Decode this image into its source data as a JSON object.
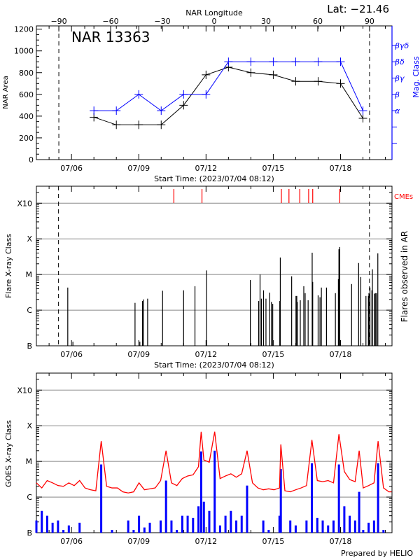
{
  "colors": {
    "area": "#000000",
    "mag": "#0000ff",
    "cme": "#ff0000",
    "goes_long": "#ff0000",
    "goes_short": "#0000ff",
    "grid": "#888888",
    "flare": "#000000"
  },
  "footer": "Prepared by HELIO",
  "chart_data": [
    {
      "type": "line",
      "title": "NAR 13363",
      "latitude_label": "Lat: −21.46",
      "xlabel": "Start Time: (2023/07/04 08:12)",
      "ylabel": "NAR Area",
      "y2label": "Mag. Class",
      "x2label": "NAR Longitude",
      "xlim": [
        "07/04 10:25",
        "07/20 07:05"
      ],
      "x_ticks": [
        "07/06",
        "07/09",
        "07/12",
        "07/15",
        "07/18"
      ],
      "x2lim": [
        -103,
        103
      ],
      "x2_ticks": [
        -90,
        -60,
        -30,
        0,
        30,
        60,
        90
      ],
      "ylim": [
        0,
        1230
      ],
      "y_ticks": [
        0,
        200,
        400,
        600,
        800,
        1000,
        1200
      ],
      "y2_ticks": [
        "",
        "",
        "α",
        "β",
        "βγ",
        "βδ",
        "βγδ"
      ],
      "limb_longitudes": [
        -90,
        90
      ],
      "x": [
        "07/07",
        "07/08",
        "07/09",
        "07/10",
        "07/11",
        "07/12",
        "07/13",
        "07/14",
        "07/15",
        "07/16",
        "07/17",
        "07/18",
        "07/19"
      ],
      "series": [
        {
          "name": "NAR Area",
          "values": [
            390,
            320,
            320,
            320,
            500,
            780,
            850,
            800,
            780,
            720,
            720,
            700,
            380
          ]
        },
        {
          "name": "Mag. Class",
          "values": [
            "α",
            "α",
            "β",
            "α",
            "β",
            "β",
            "βδ",
            "βδ",
            "βδ",
            "βδ",
            "βδ",
            "βδ",
            "α"
          ]
        }
      ],
      "grid": false
    },
    {
      "type": "bar",
      "xlabel": "Start Time: (2023/07/04 08:12)",
      "ylabel": "Flare X-ray Class",
      "y2label": "Flares observed in AR",
      "cme_label": "CMEs",
      "xlim": [
        "07/04 10:25",
        "07/20 07:05"
      ],
      "x_ticks": [
        "07/06",
        "07/09",
        "07/12",
        "07/15",
        "07/18"
      ],
      "y_scale": "log",
      "y_ticks": [
        "B",
        "C",
        "M",
        "X",
        "X10"
      ],
      "ylim": [
        "B1.0",
        "X30"
      ],
      "grid": true,
      "limb_times": [
        "07/05 10:07",
        "07/19 06:56"
      ],
      "flares": [
        [
          "07/05 20:00",
          "C4.3"
        ],
        [
          "07/06 01:30",
          "B1.3"
        ],
        [
          "07/08 20:00",
          "C1.6"
        ],
        [
          "07/09 01:10",
          "B1.3"
        ],
        [
          "07/09 04:00",
          "C1.8"
        ],
        [
          "07/09 05:00",
          "C2.0"
        ],
        [
          "07/09 09:30",
          "C2.1"
        ],
        [
          "07/10 01:30",
          "C3.5"
        ],
        [
          "07/11 00:00",
          "C3.6"
        ],
        [
          "07/11 12:10",
          "C4.7"
        ],
        [
          "07/12 00:35",
          "M1.3"
        ],
        [
          "07/13 23:25",
          "C7.0"
        ],
        [
          "07/14 08:23",
          "C1.8"
        ],
        [
          "07/14 09:50",
          "M1.0"
        ],
        [
          "07/14 11:17",
          "C2.1"
        ],
        [
          "07/14 13:35",
          "C3.6"
        ],
        [
          "07/14 16:10",
          "C2.1"
        ],
        [
          "07/14 20:14",
          "C3.1"
        ],
        [
          "07/14 22:00",
          "C1.7"
        ],
        [
          "07/14 23:25",
          "C1.5"
        ],
        [
          "07/15 06:56",
          "C1.8"
        ],
        [
          "07/15 07:30",
          "M3.0"
        ],
        [
          "07/15 19:40",
          "C8.9"
        ],
        [
          "07/16 00:17",
          "C2.5"
        ],
        [
          "07/16 01:10",
          "C2.5"
        ],
        [
          "07/16 01:44",
          "C1.7"
        ],
        [
          "07/16 04:55",
          "C1.9"
        ],
        [
          "07/16 08:40",
          "C4.7"
        ],
        [
          "07/16 10:07",
          "C3.0"
        ],
        [
          "07/16 13:18",
          "C1.9"
        ],
        [
          "07/16 17:38",
          "M4.1"
        ],
        [
          "07/16 18:13",
          "C6.2"
        ],
        [
          "07/17 00:00",
          "C2.6"
        ],
        [
          "07/17 02:00",
          "C2.3"
        ],
        [
          "07/17 03:29",
          "C4.3"
        ],
        [
          "07/17 08:57",
          "C4.3"
        ],
        [
          "07/17 18:30",
          "C3.0"
        ],
        [
          "07/17 21:41",
          "C7.4"
        ],
        [
          "07/17 22:16",
          "M5.1"
        ],
        [
          "07/17 23:08",
          "M5.9"
        ],
        [
          "07/18 11:51",
          "C5.4"
        ],
        [
          "07/18 19:22",
          "M2.1"
        ],
        [
          "07/18 21:41",
          "C8.5"
        ],
        [
          "07/19 03:12",
          "C2.5"
        ],
        [
          "07/19 05:47",
          "C2.5"
        ],
        [
          "07/19 06:22",
          "C3.0"
        ],
        [
          "07/19 07:30",
          "C4.3"
        ],
        [
          "07/19 09:33",
          "C3.6"
        ],
        [
          "07/19 10:07",
          "M1.4"
        ],
        [
          "07/19 12:09",
          "C2.9"
        ],
        [
          "07/19 13:18",
          "C3.0"
        ],
        [
          "07/19 14:27",
          "C3.0"
        ],
        [
          "07/19 15:55",
          "M3.9"
        ]
      ],
      "cmes": [
        "07/10 13:35",
        "07/11 19:40",
        "07/15 08:40",
        "07/15 16:47",
        "07/16 04:20",
        "07/16 13:52",
        "07/16 18:13",
        "07/17 23:08"
      ]
    },
    {
      "type": "line",
      "ylabel": "GOES X-ray Class",
      "xlim": [
        "07/04 10:25",
        "07/20 07:05"
      ],
      "x_ticks": [
        "07/06",
        "07/09",
        "07/12",
        "07/15",
        "07/18"
      ],
      "y_scale": "log",
      "y_ticks": [
        "B",
        "C",
        "M",
        "X",
        "X10"
      ],
      "ylim": [
        "B1.0",
        "X30"
      ],
      "grid": true,
      "x": [
        "07/04 10:25",
        "07/04 16:12",
        "07/04 21:58",
        "07/05 03:45",
        "07/05 09:33",
        "07/05 15:20",
        "07/05 21:07",
        "07/06 02:53",
        "07/06 08:40",
        "07/06 14:27",
        "07/06 20:14",
        "07/07 02:01",
        "07/07 07:48",
        "07/07 13:35",
        "07/07 19:22",
        "07/08 01:10",
        "07/08 06:56",
        "07/08 12:43",
        "07/08 18:30",
        "07/09 00:17",
        "07/09 06:04",
        "07/09 11:51",
        "07/09 17:38",
        "07/09 23:25",
        "07/10 05:12",
        "07/10 11:00",
        "07/10 16:47",
        "07/10 22:34",
        "07/11 04:20",
        "07/11 10:07",
        "07/11 15:55",
        "07/11 18:48",
        "07/11 21:42",
        "07/12 03:29",
        "07/12 09:16",
        "07/12 15:02",
        "07/12 20:49",
        "07/13 02:36",
        "07/13 08:23",
        "07/13 14:10",
        "07/13 19:57",
        "07/14 01:44",
        "07/14 07:31",
        "07/14 13:18",
        "07/14 19:05",
        "07/15 00:52",
        "07/15 06:39",
        "07/15 08:05",
        "07/15 12:26",
        "07/15 18:13",
        "07/16 00:00",
        "07/16 05:47",
        "07/16 11:34",
        "07/16 17:21",
        "07/16 23:08",
        "07/17 04:55",
        "07/17 10:42",
        "07/17 16:29",
        "07/17 22:16",
        "07/18 04:03",
        "07/18 09:50",
        "07/18 15:37",
        "07/18 19:56",
        "07/19 00:17",
        "07/19 06:04",
        "07/19 11:51",
        "07/19 16:12",
        "07/19 21:58",
        "07/20 03:45",
        "07/20 06:39"
      ],
      "series": [
        {
          "values": [
            "C2.5",
            "C1.8",
            "C2.9",
            "C2.5",
            "C2.1",
            "C2.0",
            "C2.5",
            "C2.1",
            "C2.9",
            "C1.8",
            "C1.6",
            "C1.5",
            "M3.7",
            "C2.0",
            "C1.8",
            "C1.8",
            "C1.4",
            "C1.3",
            "C1.4",
            "C2.5",
            "C1.6",
            "C1.7",
            "C1.8",
            "C2.9",
            "M2.0",
            "C2.5",
            "C2.1",
            "C3.3",
            "C3.9",
            "C4.2",
            "C7.1",
            "M6.8",
            "M1.1",
            "C9.5",
            "M6.8",
            "C3.3",
            "C3.9",
            "C4.5",
            "C3.6",
            "C4.5",
            "M2.0",
            "C2.5",
            "C1.8",
            "C1.6",
            "C1.7",
            "C1.6",
            "C1.8",
            "M3.0",
            "C1.5",
            "C1.4",
            "C1.6",
            "C1.8",
            "C2.1",
            "M4.0",
            "C2.9",
            "C2.7",
            "C2.9",
            "C2.5",
            "M5.8",
            "C5.2",
            "C3.1",
            "C2.7",
            "M2.0",
            "C1.8",
            "C2.1",
            "C2.5",
            "M3.7",
            "C1.8",
            "C1.4",
            "C1.4"
          ]
        },
        {
          "values": [
            "B2.2",
            "B4.1",
            "B3.0",
            "B1.9",
            "B2.2",
            "B1.2",
            "B1.6",
            "B1.0",
            "B1.9",
            "B1.0",
            "B1.0",
            "B1.0",
            "C8.2",
            "B1.0",
            "B1.2",
            "B1.0",
            "B1.0",
            "B2.2",
            "B1.2",
            "B3.0",
            "B1.4",
            "B1.9",
            "B1.0",
            "B2.2",
            "C2.9",
            "B2.2",
            "B1.2",
            "B3.0",
            "B3.0",
            "B2.6",
            "B5.5",
            "M1.9",
            "B7.4",
            "B4.1",
            "M2.0",
            "B1.6",
            "B3.0",
            "B4.1",
            "B2.2",
            "B3.0",
            "C2.1",
            "B1.0",
            "B1.0",
            "B2.2",
            "B1.2",
            "B1.0",
            "B3.0",
            "C6.1",
            "B1.0",
            "B2.2",
            "B1.6",
            "B1.0",
            "B2.2",
            "C8.9",
            "B2.6",
            "B2.2",
            "B1.6",
            "B2.2",
            "C8.2",
            "B5.5",
            "B3.0",
            "B2.2",
            "C1.4",
            "B1.2",
            "B1.9",
            "B2.2",
            "C8.9",
            "B1.2",
            "B1.0",
            "B1.0"
          ]
        }
      ]
    }
  ]
}
